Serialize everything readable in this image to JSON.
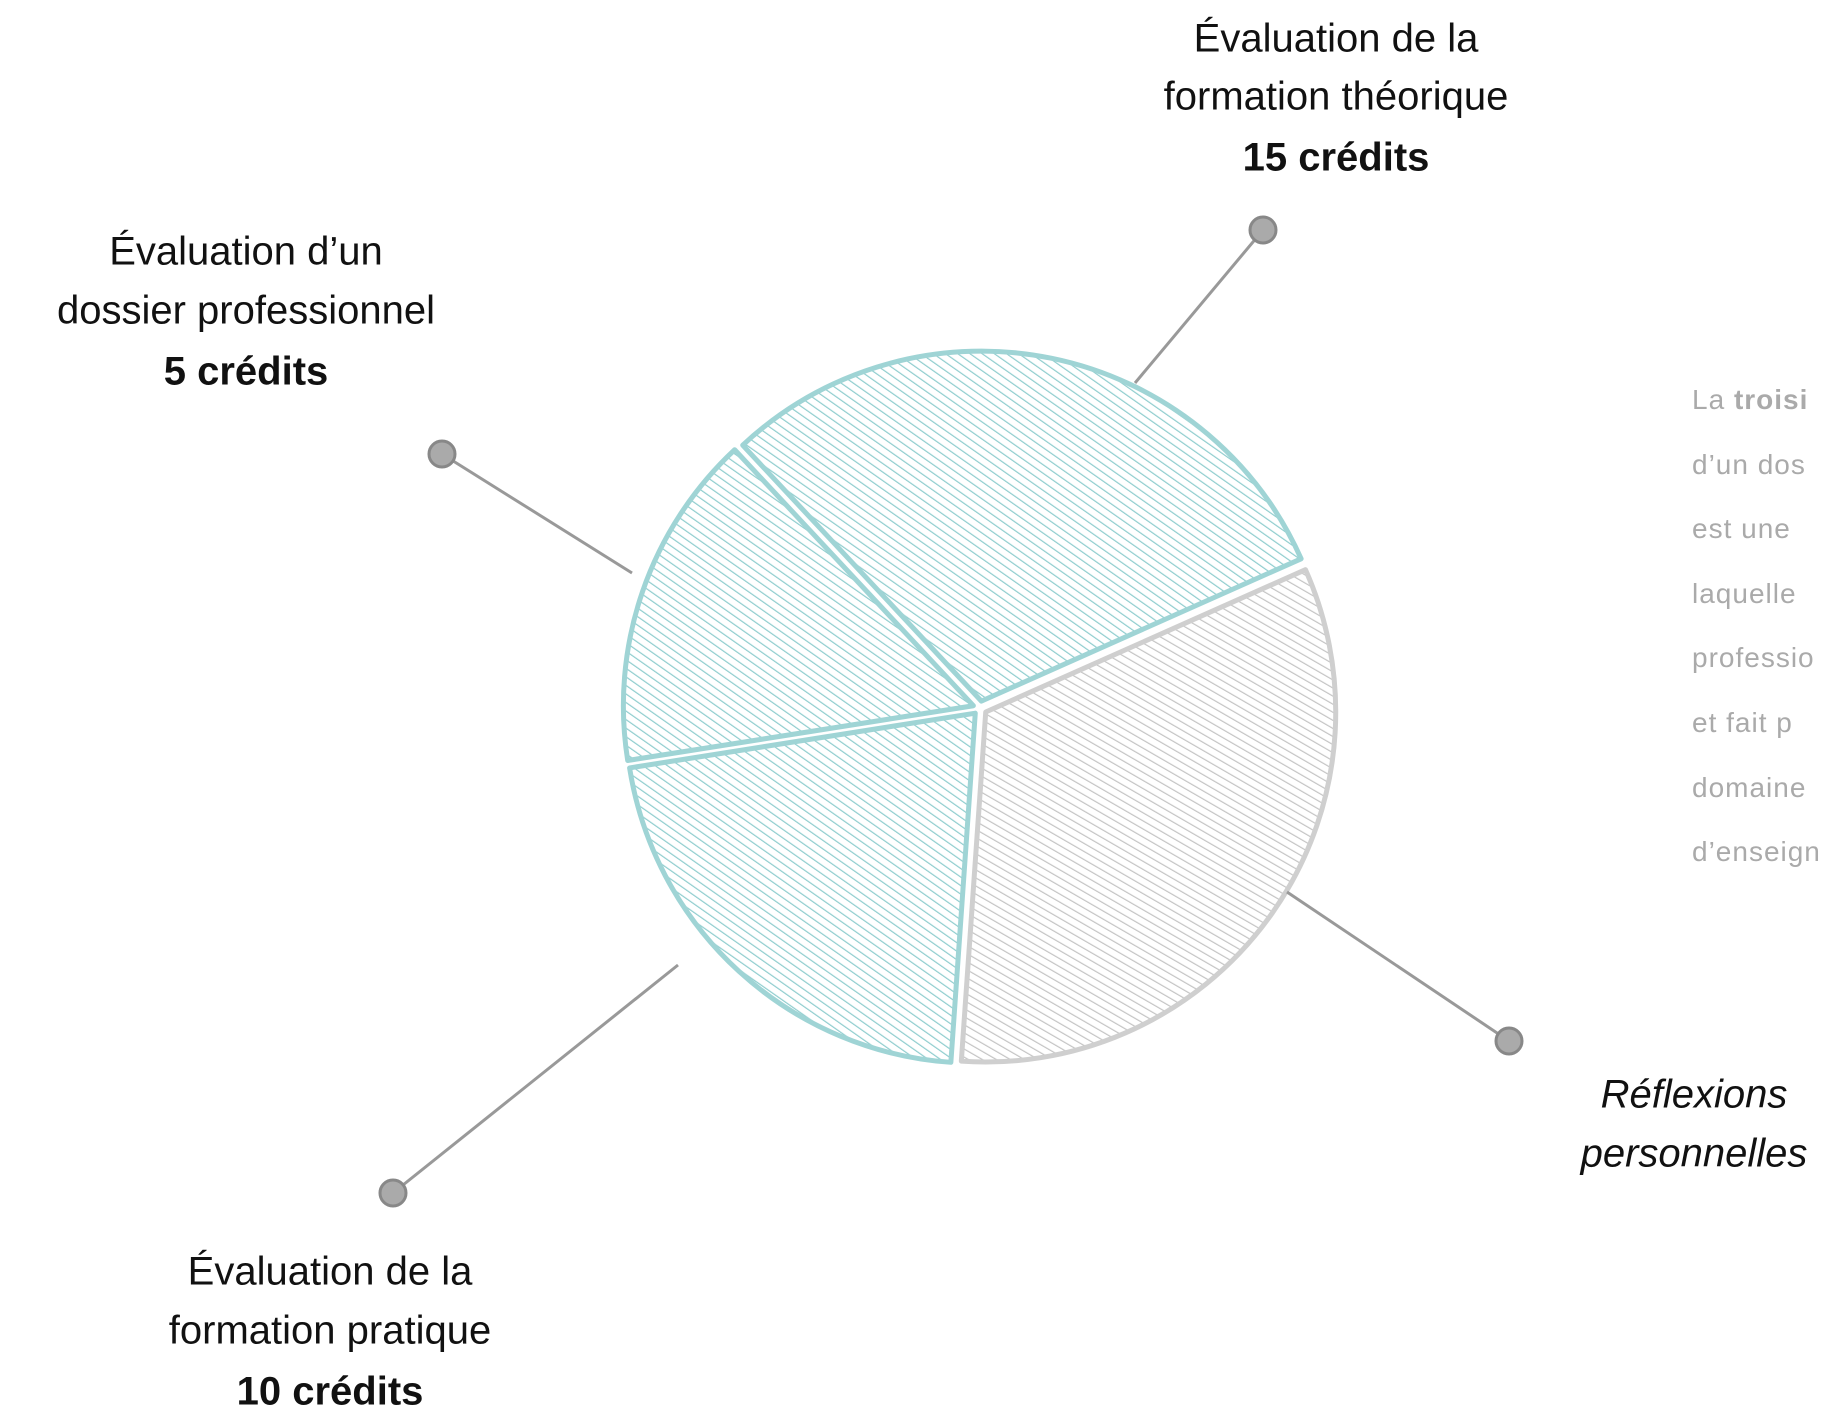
{
  "labels": {
    "theory": {
      "title_line1": "Évaluation de la",
      "title_line2": "formation théorique",
      "credits": "15 crédits"
    },
    "dossier": {
      "title_line1": "Évaluation d’un",
      "title_line2": "dossier professionnel",
      "credits": "5 crédits"
    },
    "practice": {
      "title_line1": "Évaluation de la",
      "title_line2": "formation pratique",
      "credits": "10 crédits"
    },
    "reflection": {
      "title_line1": "Réflexions",
      "title_line2": "personnelles"
    }
  },
  "paragraph": {
    "first_line_start": "La",
    "first_line_bold": "troisi",
    "lines": [
      "d’un dos",
      "est une",
      "laquelle",
      "professio",
      "et fait p",
      "domaine",
      "d’enseign"
    ]
  }
}
